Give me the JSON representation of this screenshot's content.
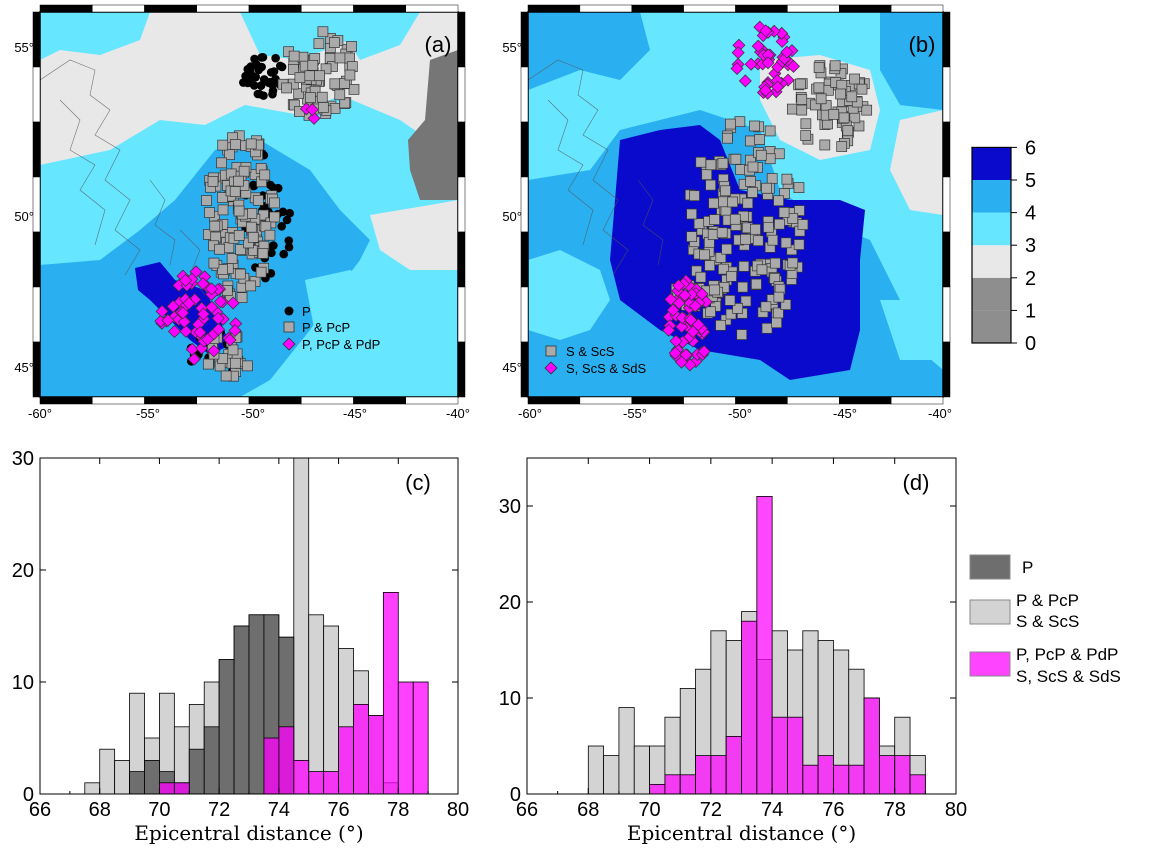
{
  "maps": [
    {
      "panel": "(a)",
      "lon_ticks": [
        "-60°",
        "-55°",
        "-50°",
        "-45°",
        "-40°"
      ],
      "lat_ticks": [
        "45°",
        "50°",
        "55°"
      ],
      "legend": [
        {
          "label": "P",
          "marker": "circle",
          "color": "#000000"
        },
        {
          "label": "P & PcP",
          "marker": "square",
          "color": "#aaaaaa"
        },
        {
          "label": "P, PcP & PdP",
          "marker": "diamond",
          "color": "#ff00ff"
        }
      ]
    },
    {
      "panel": "(b)",
      "lon_ticks": [
        "-60°",
        "-55°",
        "-50°",
        "-45°",
        "-40°"
      ],
      "lat_ticks": [
        "45°",
        "50°",
        "55°"
      ],
      "legend": [
        {
          "label": "S & ScS",
          "marker": "square",
          "color": "#aaaaaa"
        },
        {
          "label": "S, ScS & SdS",
          "marker": "diamond",
          "color": "#ff00ff"
        }
      ]
    }
  ],
  "colorbar": {
    "ticks": [
      "0",
      "1",
      "2",
      "3",
      "4",
      "5",
      "6"
    ],
    "colors": [
      "#909090",
      "#909090",
      "#767676",
      "#e8e8e8",
      "#66e6ff",
      "#2ab0f0",
      "#0a0acc"
    ]
  },
  "legend_hist": [
    {
      "label_lines": [
        "P"
      ],
      "color": "#6e6e6e"
    },
    {
      "label_lines": [
        "P & PcP",
        "S & ScS"
      ],
      "color": "#d3d3d3"
    },
    {
      "label_lines": [
        "P, PcP & PdP",
        "S, ScS & SdS"
      ],
      "color": "#ff44ff"
    }
  ],
  "chart_data": [
    {
      "type": "bar",
      "panel": "(c)",
      "xlabel": "Epicentral distance (°)",
      "xlim": [
        66,
        80
      ],
      "ylim": [
        0,
        30
      ],
      "xticks": [
        "66",
        "68",
        "70",
        "72",
        "74",
        "76",
        "78",
        "80"
      ],
      "yticks": [
        "0",
        "10",
        "20",
        "30"
      ],
      "bin_width": 0.5,
      "bin_starts": [
        67.5,
        68,
        68.5,
        69,
        69.5,
        70,
        70.5,
        71,
        71.5,
        72,
        72.5,
        73,
        73.5,
        74,
        74.5,
        75,
        75.5,
        76,
        76.5,
        77,
        77.5,
        78,
        78.5
      ],
      "series": [
        {
          "name": "P & PcP",
          "values": [
            1,
            4,
            3,
            9,
            5,
            9,
            6,
            8,
            10,
            12,
            15,
            16,
            16,
            14,
            30,
            16,
            15,
            13,
            11,
            7,
            1,
            0,
            0
          ]
        },
        {
          "name": "P",
          "values": [
            0,
            0,
            0,
            2,
            3,
            2,
            1,
            4,
            6,
            12,
            15,
            16,
            16,
            14,
            0,
            0,
            0,
            0,
            0,
            0,
            0,
            0,
            0
          ]
        },
        {
          "name": "P, PcP & PdP",
          "values": [
            0,
            0,
            0,
            0,
            0,
            1,
            1,
            0,
            0,
            0,
            0,
            0,
            5,
            6,
            3,
            2,
            2,
            6,
            8,
            7,
            18,
            10,
            10
          ]
        }
      ]
    },
    {
      "type": "bar",
      "panel": "(d)",
      "xlabel": "Epicentral distance (°)",
      "xlim": [
        66,
        80
      ],
      "ylim": [
        0,
        35
      ],
      "xticks": [
        "66",
        "68",
        "70",
        "72",
        "74",
        "76",
        "78",
        "80"
      ],
      "yticks": [
        "0",
        "10",
        "20",
        "30"
      ],
      "bin_width": 0.5,
      "bin_starts": [
        67.5,
        68,
        68.5,
        69,
        69.5,
        70,
        70.5,
        71,
        71.5,
        72,
        72.5,
        73,
        73.5,
        74,
        74.5,
        75,
        75.5,
        76,
        76.5,
        77,
        77.5,
        78,
        78.5
      ],
      "series": [
        {
          "name": "S & ScS",
          "values": [
            0,
            5,
            4,
            9,
            5,
            5,
            8,
            11,
            13,
            17,
            16,
            19,
            14,
            17,
            15,
            17,
            16,
            15,
            13,
            10,
            5,
            8,
            4
          ]
        },
        {
          "name": "S, ScS & SdS",
          "values": [
            0,
            0,
            0,
            0,
            0,
            1,
            2,
            2,
            4,
            4,
            6,
            18,
            31,
            8,
            8,
            3,
            4,
            3,
            3,
            10,
            4,
            4,
            2
          ]
        }
      ]
    }
  ]
}
